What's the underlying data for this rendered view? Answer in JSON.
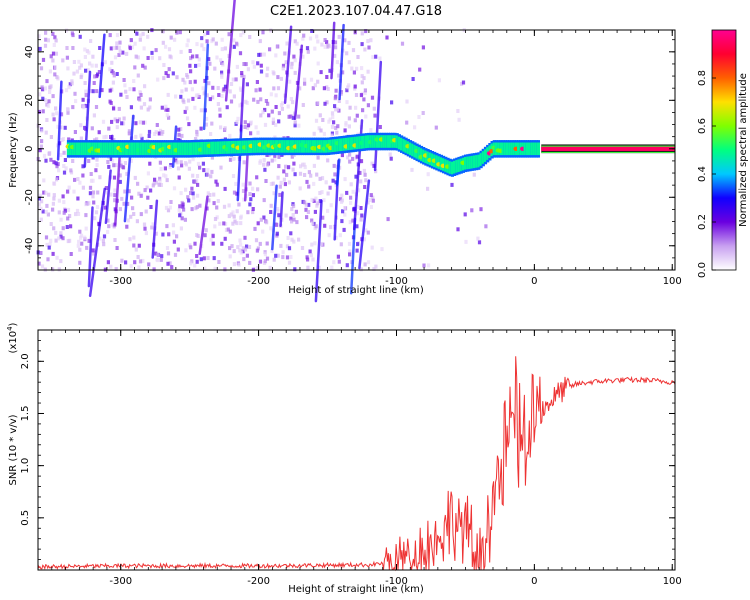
{
  "figure_title": "C2E1.2023.107.04.47.G18",
  "chart_data": [
    {
      "type": "heatmap",
      "xlabel": "Height of straight line (km)",
      "ylabel": "Frequency (Hz)",
      "xlim": [
        -360,
        102
      ],
      "ylim": [
        -50,
        49
      ],
      "x_ticks": [
        -300,
        -200,
        -100,
        0,
        100
      ],
      "y_ticks": [
        -40,
        -20,
        0,
        20,
        40
      ],
      "grid": false,
      "colorbar": {
        "label": "Normalized spectral amplitude",
        "range": [
          0,
          1
        ],
        "ticks": [
          0.0,
          0.2,
          0.4,
          0.6,
          0.8
        ],
        "colors": [
          "#ffffff",
          "#c8a0f0",
          "#6a00e0",
          "#1000ff",
          "#00c8ff",
          "#00ff80",
          "#80ff00",
          "#ffe000",
          "#ff6000",
          "#ff0030",
          "#ff0090"
        ]
      },
      "ridge": {
        "x": [
          -340,
          -300,
          -250,
          -200,
          -150,
          -120,
          -100,
          -80,
          -60,
          -50,
          -40,
          -30,
          -20,
          -10,
          0,
          5,
          50,
          102
        ],
        "y": [
          0,
          0,
          0,
          1,
          1,
          3,
          3,
          -3,
          -8,
          -6,
          -5,
          0,
          0,
          0,
          0,
          0,
          0,
          0
        ]
      }
    },
    {
      "type": "line",
      "xlabel": "Height of straight line (km)",
      "ylabel": "SNR (10 * v/v)",
      "y_multiplier": "(x10",
      "y_multiplier_exp": "4",
      "y_multiplier_close": ")",
      "xlim": [
        -360,
        102
      ],
      "ylim": [
        0,
        2.3
      ],
      "x_ticks": [
        -300,
        -200,
        -100,
        0,
        100
      ],
      "y_ticks": [
        0.5,
        1.0,
        1.5,
        2.0
      ],
      "grid": false,
      "color": "#ee3333",
      "series": [
        {
          "x": [
            -360,
            -300,
            -200,
            -120,
            -100,
            -80,
            -70,
            -60,
            -50,
            -45,
            -40,
            -35,
            -30,
            -25,
            -20,
            -15,
            -10,
            -5,
            0,
            10,
            20,
            30,
            40,
            60,
            80,
            102
          ],
          "y": [
            0.03,
            0.04,
            0.04,
            0.05,
            0.08,
            0.2,
            0.3,
            0.5,
            0.4,
            0.15,
            0.1,
            0.4,
            0.7,
            0.9,
            1.1,
            1.5,
            1.25,
            1.2,
            1.45,
            1.6,
            1.72,
            1.78,
            1.8,
            1.82,
            1.82,
            1.8
          ]
        }
      ]
    }
  ]
}
